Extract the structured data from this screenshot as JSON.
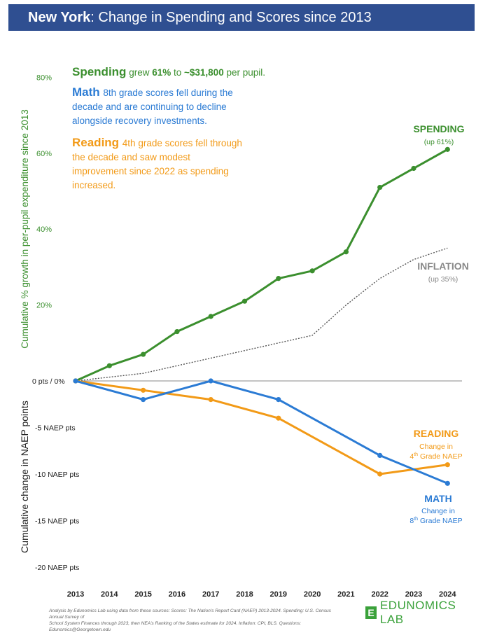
{
  "header": {
    "title_bold": "New York",
    "title_rest": ": Change in Spending and Scores since 2013"
  },
  "annotation": {
    "spending": {
      "head": "Spending",
      "text_a": " grew ",
      "bold": "61%",
      "text_b": " to ",
      "bold2": "~$31,800",
      "text_c": " per pupil."
    },
    "math": {
      "head": "Math",
      "lines": [
        "8th grade scores fell during the",
        "decade and are continuing to decline",
        "alongside recovery investments."
      ]
    },
    "reading": {
      "head": "Reading",
      "lines": [
        "4th grade scores fell through",
        "the decade and saw modest",
        "improvement since 2022 as spending",
        "increased."
      ]
    }
  },
  "chart_data": {
    "type": "line",
    "x": [
      2013,
      2014,
      2015,
      2016,
      2017,
      2018,
      2019,
      2020,
      2021,
      2022,
      2023,
      2024
    ],
    "ylabel_top": "Cumulative % growth in per-pupil expenditure since 2013",
    "ylabel_bottom": "Cumulative change in NAEP points",
    "top_ticks": [
      {
        "v": 20,
        "label": "20%"
      },
      {
        "v": 40,
        "label": "40%"
      },
      {
        "v": 60,
        "label": "60%"
      },
      {
        "v": 80,
        "label": "80%"
      }
    ],
    "zero_label": "0 pts / 0%",
    "bottom_ticks": [
      {
        "v": -5,
        "label": "-5 NAEP pts"
      },
      {
        "v": -10,
        "label": "-10 NAEP pts"
      },
      {
        "v": -15,
        "label": "-15 NAEP pts"
      },
      {
        "v": -20,
        "label": "-20 NAEP pts"
      }
    ],
    "spending": {
      "name": "SPENDING",
      "sub": "(up 61%)",
      "color": "#3b8f2e",
      "x": [
        2013,
        2014,
        2015,
        2016,
        2017,
        2018,
        2019,
        2020,
        2021,
        2022,
        2023,
        2024
      ],
      "values": [
        0,
        4,
        7,
        13,
        17,
        21,
        27,
        29,
        34,
        51,
        56,
        61
      ]
    },
    "inflation": {
      "name": "INFLATION",
      "sub": "(up 35%)",
      "color": "#555555",
      "x": [
        2013,
        2014,
        2015,
        2016,
        2017,
        2018,
        2019,
        2020,
        2021,
        2022,
        2023,
        2024
      ],
      "values": [
        0,
        1,
        2,
        4,
        6,
        8,
        10,
        12,
        20,
        27,
        32,
        35
      ]
    },
    "reading": {
      "name": "READING",
      "sub1": "Change in",
      "sub2a": "4",
      "sub2sup": "th",
      "sub2b": " Grade NAEP",
      "color": "#f29a17",
      "x": [
        2013,
        2015,
        2017,
        2019,
        2022,
        2024
      ],
      "values": [
        0,
        -1,
        -2,
        -4,
        -10,
        -9
      ]
    },
    "math": {
      "name": "MATH",
      "sub1": "Change in",
      "sub2a": "8",
      "sub2sup": "th",
      "sub2b": " Grade NAEP",
      "color": "#2b7bd4",
      "x": [
        2013,
        2015,
        2017,
        2019,
        2022,
        2024
      ],
      "values": [
        0,
        -2,
        0,
        -2,
        -8,
        -11
      ]
    }
  },
  "footer": {
    "line1": "Analysis by Edunomics Lab using data from these sources: Scores: The Nation's Report Card (NAEP) 2013-2024. Spending: U.S. Census Annual Survey of",
    "line2": "School System Finances through 2023, then NEA's Ranking of the States estimate for 2024. Inflation: CPI, BLS. Questions: Edunomics@Georgetown.edu"
  },
  "logo": {
    "mark": "E",
    "name": "EDUNOMICS LAB"
  }
}
